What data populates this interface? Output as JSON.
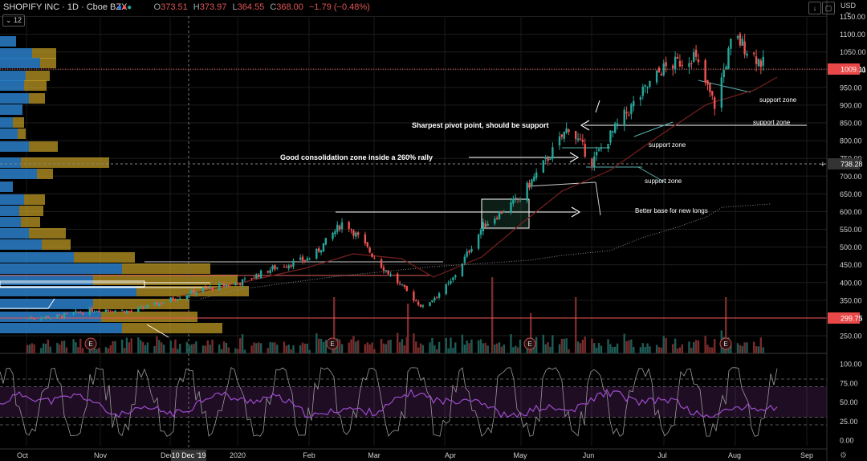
{
  "header": {
    "symbol": "SHOPIFY INC · 1D · Cboe BZX",
    "open_label": "O",
    "open": "373.51",
    "high_label": "H",
    "high": "373.97",
    "low_label": "L",
    "low": "364.55",
    "close_label": "C",
    "close": "368.00",
    "change": "−1.79 (−0.48%)",
    "indicator_badge": "12",
    "currency_line1": "USD",
    "currency_line2": "∼"
  },
  "colors": {
    "up": "#26a69a",
    "down": "#ef5350",
    "vp_blue": "#2a7fc9",
    "vp_yellow": "#c9a227",
    "rsi": "#9c4dcc",
    "stoch": "#9a9a9a",
    "price_line": "#f05555"
  },
  "chart_data": {
    "type": "candlestick",
    "x_tick_labels": [
      "Oct",
      "Nov",
      "Dec",
      "10 Dec '19",
      "2020",
      "Feb",
      "Mar",
      "Apr",
      "May",
      "Jun",
      "Jul",
      "Aug",
      "Sep"
    ],
    "y_tick_labels": [
      "1150.00",
      "1100.00",
      "1050.00",
      "1000.00",
      "950.00",
      "900.00",
      "850.00",
      "800.00",
      "750.00",
      "700.00",
      "650.00",
      "600.00",
      "550.00",
      "500.00",
      "450.00",
      "400.00",
      "350.00",
      "300.00",
      "250.00"
    ],
    "ylim": [
      220,
      1160
    ],
    "oscillator_ticks": [
      "100.00",
      "75.00",
      "50.00",
      "25.00",
      "0.00"
    ],
    "price_labels": {
      "last": "1009.11",
      "crosshair": "738.28",
      "marker": "299.75"
    },
    "crosshair_x_label": "10 Dec '19",
    "earnings_label": "E",
    "annotations": [
      "Sharpest pivot point, should be support",
      "Good consolidation zone inside a 260% rally",
      "Better base for new longs",
      "support zone",
      "support zone",
      "support zone",
      "support zone"
    ],
    "closes": [
      {
        "d": "2019-10-01",
        "c": 300
      },
      {
        "d": "2019-10-15",
        "c": 305
      },
      {
        "d": "2019-11-01",
        "c": 325
      },
      {
        "d": "2019-11-15",
        "c": 318
      },
      {
        "d": "2019-12-01",
        "c": 350
      },
      {
        "d": "2019-12-15",
        "c": 380
      },
      {
        "d": "2020-01-01",
        "c": 400
      },
      {
        "d": "2020-01-15",
        "c": 440
      },
      {
        "d": "2020-02-01",
        "c": 470
      },
      {
        "d": "2020-02-15",
        "c": 575
      },
      {
        "d": "2020-03-01",
        "c": 455
      },
      {
        "d": "2020-03-15",
        "c": 360
      },
      {
        "d": "2020-03-20",
        "c": 330
      },
      {
        "d": "2020-04-01",
        "c": 400
      },
      {
        "d": "2020-04-15",
        "c": 560
      },
      {
        "d": "2020-05-01",
        "c": 640
      },
      {
        "d": "2020-05-15",
        "c": 770
      },
      {
        "d": "2020-05-22",
        "c": 840
      },
      {
        "d": "2020-06-01",
        "c": 740
      },
      {
        "d": "2020-06-15",
        "c": 870
      },
      {
        "d": "2020-07-01",
        "c": 1000
      },
      {
        "d": "2020-07-15",
        "c": 1040
      },
      {
        "d": "2020-07-24",
        "c": 900
      },
      {
        "d": "2020-08-01",
        "c": 1095
      },
      {
        "d": "2020-08-15",
        "c": 1009
      }
    ]
  }
}
